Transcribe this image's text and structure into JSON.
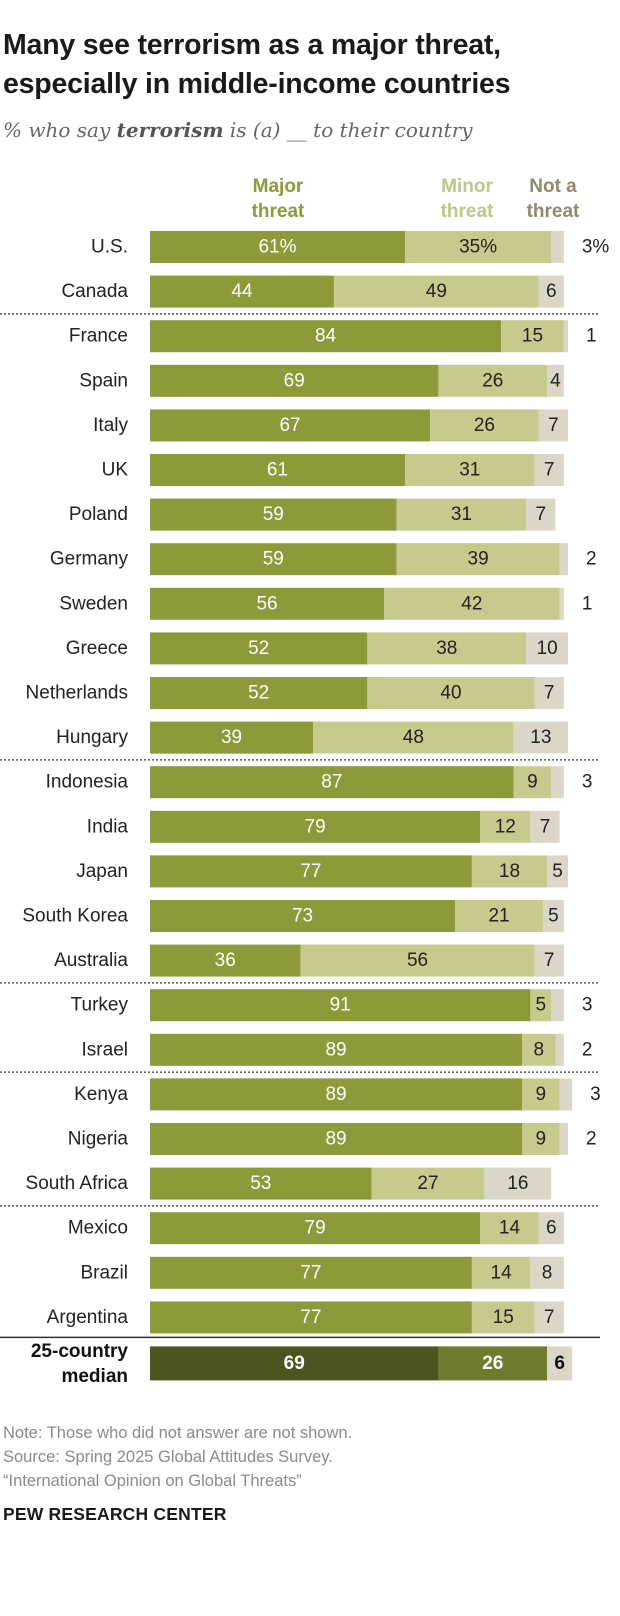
{
  "title": "Many see terrorism as a major threat, especially in middle-income countries",
  "subtitle": {
    "prefix": "% who say ",
    "emphasis": "terrorism",
    "suffix": " is (a) __ to their country"
  },
  "colors": {
    "major": "#8c9a3a",
    "minor": "#c4cb8c",
    "not": "#dbd6c8",
    "median_major": "#4d5420",
    "median_minor": "#6e7a2c",
    "median_not": "#dbd6c8",
    "major_header": "#8c9a3a",
    "minor_header": "#bfc68a",
    "not_header": "#8f8a6e"
  },
  "chart_data": {
    "type": "bar",
    "stacked": true,
    "orientation": "horizontal",
    "xlim": [
      0,
      100
    ],
    "series": [
      {
        "name": "Major threat",
        "values": [
          61,
          44,
          84,
          69,
          67,
          61,
          59,
          59,
          56,
          52,
          52,
          39,
          87,
          79,
          77,
          73,
          36,
          91,
          89,
          89,
          89,
          53,
          79,
          77,
          77,
          69
        ]
      },
      {
        "name": "Minor threat",
        "values": [
          35,
          49,
          15,
          26,
          26,
          31,
          31,
          39,
          42,
          38,
          40,
          48,
          9,
          12,
          18,
          21,
          56,
          5,
          8,
          9,
          9,
          27,
          14,
          14,
          15,
          26
        ]
      },
      {
        "name": "Not a threat",
        "values": [
          3,
          6,
          1,
          4,
          7,
          7,
          7,
          2,
          1,
          10,
          7,
          13,
          3,
          7,
          5,
          5,
          7,
          3,
          2,
          3,
          2,
          16,
          6,
          8,
          7,
          6
        ]
      }
    ],
    "categories": [
      "U.S.",
      "Canada",
      "France",
      "Spain",
      "Italy",
      "UK",
      "Poland",
      "Germany",
      "Sweden",
      "Greece",
      "Netherlands",
      "Hungary",
      "Indonesia",
      "India",
      "Japan",
      "South Korea",
      "Australia",
      "Turkey",
      "Israel",
      "Kenya",
      "Nigeria",
      "South Africa",
      "Mexico",
      "Brazil",
      "Argentina",
      "25-country median"
    ],
    "rows": [
      {
        "label": "U.S.",
        "major": 61,
        "minor": 35,
        "not": 3,
        "major_text": "61%",
        "minor_text": "35%",
        "not_text": "3%",
        "not_outside": true
      },
      {
        "label": "Canada",
        "major": 44,
        "minor": 49,
        "not": 6,
        "major_text": "44",
        "minor_text": "49",
        "not_text": "6",
        "not_outside": false
      },
      {
        "label": "France",
        "major": 84,
        "minor": 15,
        "not": 1,
        "major_text": "84",
        "minor_text": "15",
        "not_text": "1",
        "not_outside": true
      },
      {
        "label": "Spain",
        "major": 69,
        "minor": 26,
        "not": 4,
        "major_text": "69",
        "minor_text": "26",
        "not_text": "4",
        "not_outside": false
      },
      {
        "label": "Italy",
        "major": 67,
        "minor": 26,
        "not": 7,
        "major_text": "67",
        "minor_text": "26",
        "not_text": "7",
        "not_outside": false
      },
      {
        "label": "UK",
        "major": 61,
        "minor": 31,
        "not": 7,
        "major_text": "61",
        "minor_text": "31",
        "not_text": "7",
        "not_outside": false
      },
      {
        "label": "Poland",
        "major": 59,
        "minor": 31,
        "not": 7,
        "major_text": "59",
        "minor_text": "31",
        "not_text": "7",
        "not_outside": false
      },
      {
        "label": "Germany",
        "major": 59,
        "minor": 39,
        "not": 2,
        "major_text": "59",
        "minor_text": "39",
        "not_text": "2",
        "not_outside": true
      },
      {
        "label": "Sweden",
        "major": 56,
        "minor": 42,
        "not": 1,
        "major_text": "56",
        "minor_text": "42",
        "not_text": "1",
        "not_outside": true
      },
      {
        "label": "Greece",
        "major": 52,
        "minor": 38,
        "not": 10,
        "major_text": "52",
        "minor_text": "38",
        "not_text": "10",
        "not_outside": false
      },
      {
        "label": "Netherlands",
        "major": 52,
        "minor": 40,
        "not": 7,
        "major_text": "52",
        "minor_text": "40",
        "not_text": "7",
        "not_outside": false
      },
      {
        "label": "Hungary",
        "major": 39,
        "minor": 48,
        "not": 13,
        "major_text": "39",
        "minor_text": "48",
        "not_text": "13",
        "not_outside": false
      },
      {
        "label": "Indonesia",
        "major": 87,
        "minor": 9,
        "not": 3,
        "major_text": "87",
        "minor_text": "9",
        "not_text": "3",
        "not_outside": true
      },
      {
        "label": "India",
        "major": 79,
        "minor": 12,
        "not": 7,
        "major_text": "79",
        "minor_text": "12",
        "not_text": "7",
        "not_outside": false
      },
      {
        "label": "Japan",
        "major": 77,
        "minor": 18,
        "not": 5,
        "major_text": "77",
        "minor_text": "18",
        "not_text": "5",
        "not_outside": false
      },
      {
        "label": "South Korea",
        "major": 73,
        "minor": 21,
        "not": 5,
        "major_text": "73",
        "minor_text": "21",
        "not_text": "5",
        "not_outside": false
      },
      {
        "label": "Australia",
        "major": 36,
        "minor": 56,
        "not": 7,
        "major_text": "36",
        "minor_text": "56",
        "not_text": "7",
        "not_outside": false
      },
      {
        "label": "Turkey",
        "major": 91,
        "minor": 5,
        "not": 3,
        "major_text": "91",
        "minor_text": "5",
        "not_text": "3",
        "not_outside": true
      },
      {
        "label": "Israel",
        "major": 89,
        "minor": 8,
        "not": 2,
        "major_text": "89",
        "minor_text": "8",
        "not_text": "2",
        "not_outside": true
      },
      {
        "label": "Kenya",
        "major": 89,
        "minor": 9,
        "not": 3,
        "major_text": "89",
        "minor_text": "9",
        "not_text": "3",
        "not_outside": true
      },
      {
        "label": "Nigeria",
        "major": 89,
        "minor": 9,
        "not": 2,
        "major_text": "89",
        "minor_text": "9",
        "not_text": "2",
        "not_outside": true
      },
      {
        "label": "South Africa",
        "major": 53,
        "minor": 27,
        "not": 16,
        "major_text": "53",
        "minor_text": "27",
        "not_text": "16",
        "not_outside": false
      },
      {
        "label": "Mexico",
        "major": 79,
        "minor": 14,
        "not": 6,
        "major_text": "79",
        "minor_text": "14",
        "not_text": "6",
        "not_outside": false
      },
      {
        "label": "Brazil",
        "major": 77,
        "minor": 14,
        "not": 8,
        "major_text": "77",
        "minor_text": "14",
        "not_text": "8",
        "not_outside": false
      },
      {
        "label": "Argentina",
        "major": 77,
        "minor": 15,
        "not": 7,
        "major_text": "77",
        "minor_text": "15",
        "not_text": "7",
        "not_outside": false
      }
    ],
    "group_breaks_after": [
      "Canada",
      "Hungary",
      "Australia",
      "Israel",
      "South Africa"
    ],
    "median": {
      "label_line1": "25-country",
      "label_line2": "median",
      "major": 69,
      "minor": 26,
      "not": 6,
      "major_text": "69",
      "minor_text": "26",
      "not_text": "6"
    }
  },
  "legend": {
    "major_line1": "Major",
    "major_line2": "threat",
    "minor_line1": "Minor",
    "minor_line2": "threat",
    "not_line1": "Not a",
    "not_line2": "threat"
  },
  "footer": {
    "note": "Note: Those who did not answer are not shown.",
    "source": "Source: Spring 2025 Global Attitudes Survey.",
    "report": "“International Opinion on Global Threats”",
    "brand": "PEW RESEARCH CENTER"
  }
}
